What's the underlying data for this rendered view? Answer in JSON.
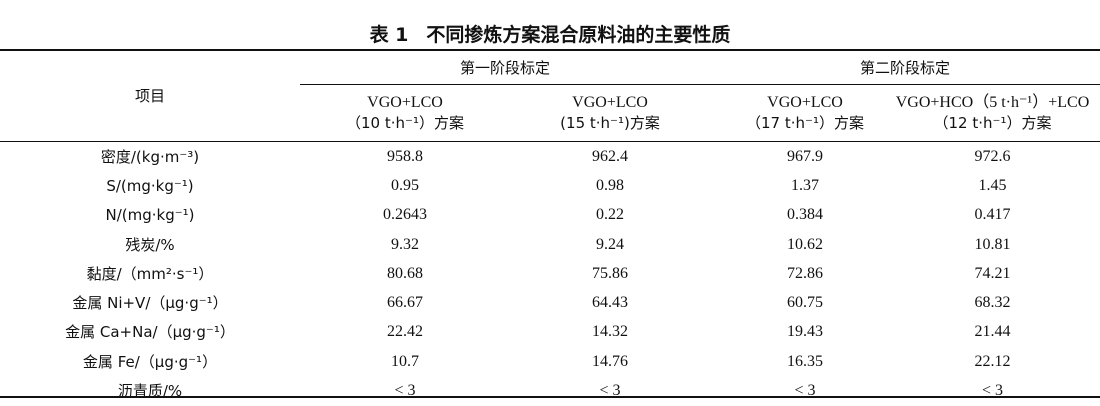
{
  "table": {
    "caption_number": "表 1",
    "caption_text": "不同掺炼方案混合原料油的主要性质",
    "item_header": "项目",
    "group_headers": [
      "第一阶段标定",
      "第二阶段标定"
    ],
    "columns": [
      {
        "line1": "VGO+LCO",
        "line2": "（10 t·h⁻¹）方案"
      },
      {
        "line1": "VGO+LCO",
        "line2": "(15 t·h⁻¹)方案"
      },
      {
        "line1": "VGO+LCO",
        "line2": "（17 t·h⁻¹）方案"
      },
      {
        "line1": "VGO+HCO（5 t·h⁻¹）+LCO",
        "line2": "（12 t·h⁻¹）方案"
      }
    ],
    "rows": [
      {
        "label": "密度/(kg·m⁻³)",
        "values": [
          "958.8",
          "962.4",
          "967.9",
          "972.6"
        ]
      },
      {
        "label": "S/(mg·kg⁻¹)",
        "values": [
          "0.95",
          "0.98",
          "1.37",
          "1.45"
        ]
      },
      {
        "label": "N/(mg·kg⁻¹)",
        "values": [
          "0.2643",
          "0.22",
          "0.384",
          "0.417"
        ]
      },
      {
        "label": "残炭/%",
        "values": [
          "9.32",
          "9.24",
          "10.62",
          "10.81"
        ]
      },
      {
        "label": "黏度/（mm²·s⁻¹）",
        "values": [
          "80.68",
          "75.86",
          "72.86",
          "74.21"
        ]
      },
      {
        "label": "金属 Ni+V/（μg·g⁻¹）",
        "values": [
          "66.67",
          "64.43",
          "60.75",
          "68.32"
        ]
      },
      {
        "label": "金属 Ca+Na/（μg·g⁻¹）",
        "values": [
          "22.42",
          "14.32",
          "19.43",
          "21.44"
        ]
      },
      {
        "label": "金属 Fe/（μg·g⁻¹）",
        "values": [
          "10.7",
          "14.76",
          "16.35",
          "22.12"
        ]
      },
      {
        "label": "沥青质/%",
        "values": [
          "< 3",
          "< 3",
          "< 3",
          "< 3"
        ]
      }
    ]
  }
}
